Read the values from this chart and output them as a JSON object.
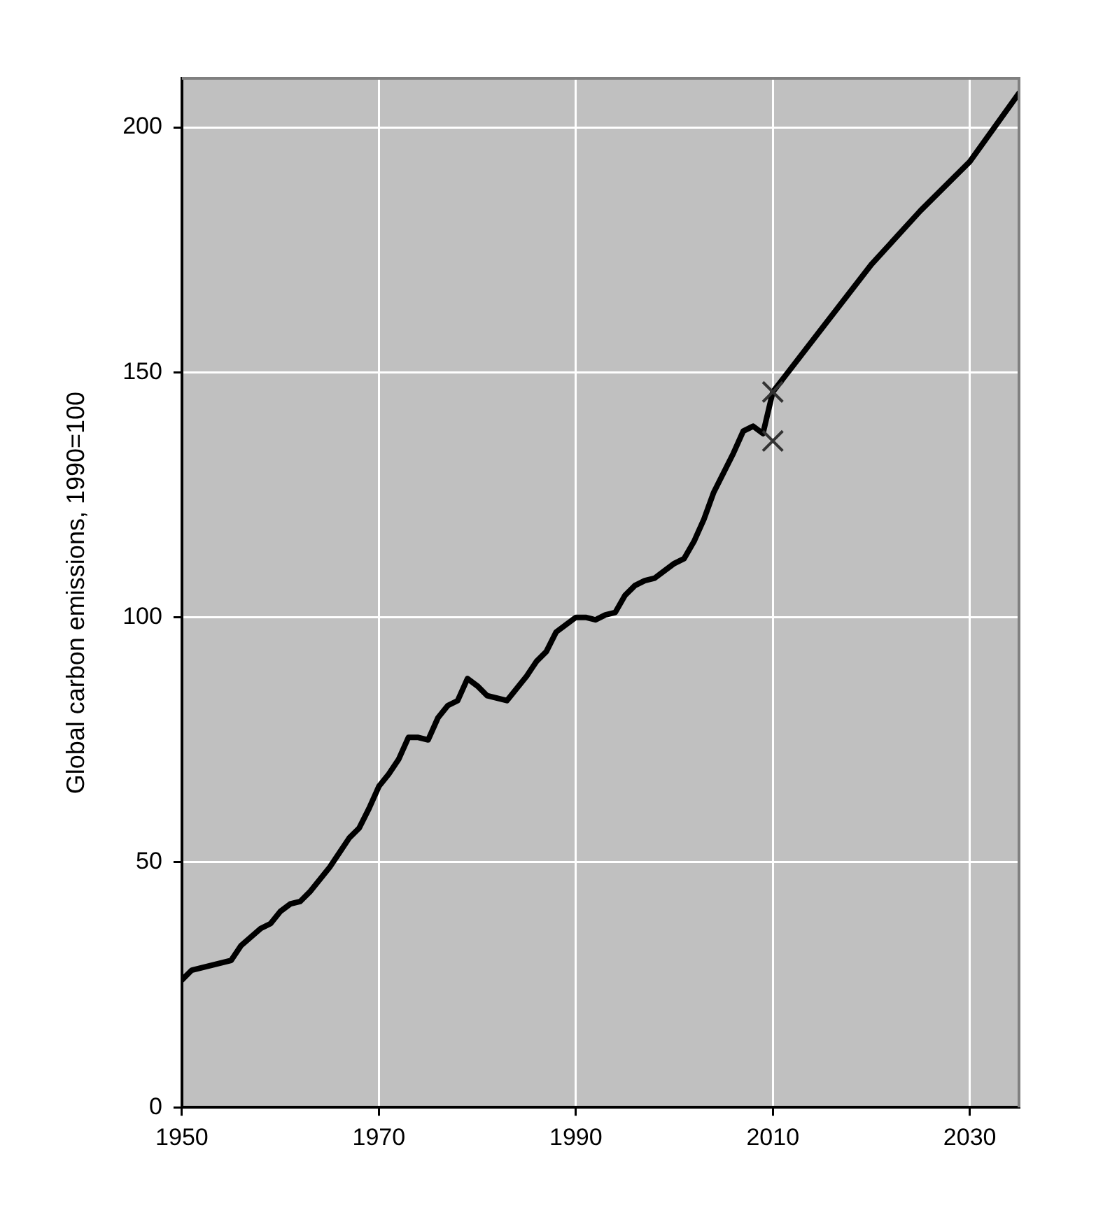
{
  "chart_data": {
    "type": "line",
    "ylabel": "Global carbon emissions, 1990=100",
    "x": [
      1950,
      1951,
      1953,
      1955,
      1956,
      1958,
      1959,
      1960,
      1961,
      1962,
      1963,
      1964,
      1965,
      1966,
      1967,
      1968,
      1969,
      1970,
      1971,
      1972,
      1973,
      1974,
      1975,
      1976,
      1977,
      1978,
      1979,
      1980,
      1981,
      1982,
      1983,
      1984,
      1985,
      1986,
      1987,
      1988,
      1989,
      1990,
      1991,
      1992,
      1993,
      1994,
      1995,
      1996,
      1997,
      1998,
      1999,
      2000,
      2001,
      2002,
      2003,
      2004,
      2005,
      2006,
      2007,
      2008,
      2009,
      2010,
      2015,
      2020,
      2025,
      2030,
      2035
    ],
    "series": [
      {
        "color": "#000000",
        "values": [
          26,
          28,
          29,
          30,
          33,
          36.5,
          37.5,
          40,
          41.5,
          42,
          44,
          46.5,
          49,
          52,
          55,
          57,
          61,
          65.5,
          68,
          71,
          75.5,
          75.5,
          75,
          79.5,
          82,
          83,
          87.5,
          86,
          84,
          83.5,
          83,
          85.5,
          88,
          91,
          93,
          97,
          98.5,
          100,
          100,
          99.5,
          100.5,
          101,
          104.5,
          106.5,
          107.5,
          108,
          109.5,
          111,
          112,
          115.5,
          120,
          125.5,
          129.5,
          133.5,
          138,
          139,
          137.5,
          146,
          159,
          172,
          183,
          193,
          207
        ]
      },
      {
        "type": "scatter",
        "marker": "cross",
        "color": "#333333",
        "x": [
          2010,
          2010
        ],
        "values": [
          146,
          136
        ]
      }
    ],
    "xlim": [
      1950,
      2035
    ],
    "xticks": [
      1950,
      1970,
      1990,
      2010,
      2030
    ],
    "ylim": [
      0,
      210
    ],
    "yticks": [
      0,
      50,
      100,
      150,
      200
    ],
    "grid": true,
    "legend": false,
    "marker": "none",
    "line_style": "solid"
  }
}
